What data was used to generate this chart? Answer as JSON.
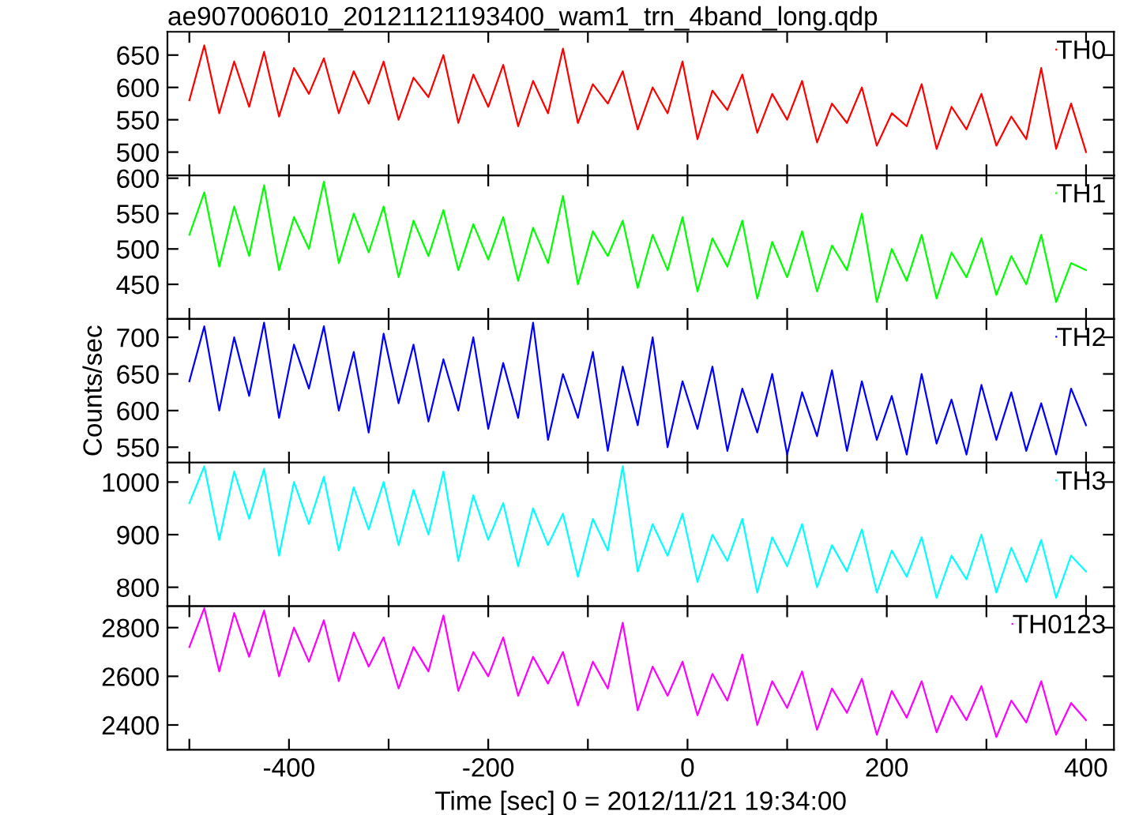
{
  "chart_data": [
    {
      "type": "line",
      "title": "ae907006010_20121121193400_wam1_trn_4band_long.qdp",
      "x": [
        -500,
        -485,
        -470,
        -455,
        -440,
        -425,
        -410,
        -395,
        -380,
        -365,
        -350,
        -335,
        -320,
        -305,
        -290,
        -275,
        -260,
        -245,
        -230,
        -215,
        -200,
        -185,
        -170,
        -155,
        -140,
        -125,
        -110,
        -95,
        -80,
        -65,
        -50,
        -35,
        -20,
        -5,
        10,
        25,
        40,
        55,
        70,
        85,
        100,
        115,
        130,
        145,
        160,
        175,
        190,
        205,
        220,
        235,
        250,
        265,
        280,
        295,
        310,
        325,
        340,
        355,
        370,
        385,
        400
      ],
      "series": [
        {
          "name": "TH0",
          "color": "#ff0000",
          "values": [
            580,
            665,
            560,
            640,
            570,
            655,
            555,
            630,
            590,
            645,
            560,
            625,
            575,
            640,
            550,
            615,
            585,
            650,
            545,
            620,
            570,
            635,
            540,
            610,
            560,
            660,
            545,
            605,
            575,
            625,
            535,
            600,
            560,
            640,
            520,
            595,
            565,
            620,
            530,
            590,
            550,
            610,
            515,
            575,
            545,
            600,
            510,
            560,
            540,
            605,
            505,
            570,
            535,
            590,
            510,
            555,
            520,
            630,
            505,
            575,
            500
          ]
        }
      ],
      "xlim": [
        -522,
        428
      ],
      "xticks": [
        {
          "value": -500,
          "label": null
        },
        -400,
        {
          "value": -300,
          "label": null
        },
        -200,
        {
          "value": -100,
          "label": null
        },
        0,
        {
          "value": 100,
          "label": null
        },
        200,
        {
          "value": 300,
          "label": null
        },
        400
      ],
      "ylim": [
        464,
        686
      ],
      "yticks": [
        500,
        550,
        600,
        650
      ],
      "tick_labels": "y",
      "legend": "top right",
      "grid": false
    },
    {
      "type": "line",
      "x": [
        -500,
        -485,
        -470,
        -455,
        -440,
        -425,
        -410,
        -395,
        -380,
        -365,
        -350,
        -335,
        -320,
        -305,
        -290,
        -275,
        -260,
        -245,
        -230,
        -215,
        -200,
        -185,
        -170,
        -155,
        -140,
        -125,
        -110,
        -95,
        -80,
        -65,
        -50,
        -35,
        -20,
        -5,
        10,
        25,
        40,
        55,
        70,
        85,
        100,
        115,
        130,
        145,
        160,
        175,
        190,
        205,
        220,
        235,
        250,
        265,
        280,
        295,
        310,
        325,
        340,
        355,
        370,
        385,
        400
      ],
      "series": [
        {
          "name": "TH1",
          "color": "#00ff00",
          "values": [
            520,
            580,
            475,
            560,
            490,
            590,
            470,
            545,
            500,
            595,
            480,
            550,
            495,
            560,
            460,
            540,
            490,
            555,
            470,
            535,
            485,
            545,
            455,
            530,
            480,
            575,
            450,
            525,
            490,
            540,
            445,
            520,
            470,
            545,
            440,
            515,
            475,
            540,
            430,
            510,
            460,
            525,
            440,
            505,
            470,
            550,
            425,
            500,
            455,
            520,
            430,
            495,
            460,
            515,
            435,
            490,
            450,
            520,
            425,
            480,
            470
          ]
        }
      ],
      "xlim": [
        -522,
        428
      ],
      "xticks": [
        {
          "value": -500,
          "label": null
        },
        -400,
        {
          "value": -300,
          "label": null
        },
        -200,
        {
          "value": -100,
          "label": null
        },
        0,
        {
          "value": 100,
          "label": null
        },
        200,
        {
          "value": 300,
          "label": null
        },
        400
      ],
      "ylim": [
        401,
        604
      ],
      "yticks": [
        450,
        500,
        550,
        600
      ],
      "tick_labels": "y",
      "legend": "top right",
      "grid": false
    },
    {
      "type": "line",
      "ylabel": "Counts/sec",
      "x": [
        -500,
        -485,
        -470,
        -455,
        -440,
        -425,
        -410,
        -395,
        -380,
        -365,
        -350,
        -335,
        -320,
        -305,
        -290,
        -275,
        -260,
        -245,
        -230,
        -215,
        -200,
        -185,
        -170,
        -155,
        -140,
        -125,
        -110,
        -95,
        -80,
        -65,
        -50,
        -35,
        -20,
        -5,
        10,
        25,
        40,
        55,
        70,
        85,
        100,
        115,
        130,
        145,
        160,
        175,
        190,
        205,
        220,
        235,
        250,
        265,
        280,
        295,
        310,
        325,
        340,
        355,
        370,
        385,
        400
      ],
      "series": [
        {
          "name": "TH2",
          "color": "#0000ff",
          "values": [
            640,
            715,
            600,
            700,
            620,
            720,
            590,
            690,
            630,
            715,
            600,
            680,
            570,
            705,
            610,
            690,
            585,
            670,
            600,
            700,
            575,
            665,
            590,
            720,
            560,
            650,
            590,
            680,
            545,
            660,
            580,
            700,
            550,
            640,
            575,
            660,
            545,
            630,
            570,
            650,
            540,
            625,
            565,
            655,
            545,
            640,
            560,
            620,
            540,
            650,
            555,
            615,
            540,
            635,
            560,
            625,
            545,
            610,
            540,
            630,
            580
          ]
        }
      ],
      "xlim": [
        -522,
        428
      ],
      "xticks": [
        {
          "value": -500,
          "label": null
        },
        -400,
        {
          "value": -300,
          "label": null
        },
        -200,
        {
          "value": -100,
          "label": null
        },
        0,
        {
          "value": 100,
          "label": null
        },
        200,
        {
          "value": 300,
          "label": null
        },
        400
      ],
      "ylim": [
        529,
        725
      ],
      "yticks": [
        550,
        600,
        650,
        700
      ],
      "tick_labels": "y",
      "legend": "top right",
      "grid": false
    },
    {
      "type": "line",
      "x": [
        -500,
        -485,
        -470,
        -455,
        -440,
        -425,
        -410,
        -395,
        -380,
        -365,
        -350,
        -335,
        -320,
        -305,
        -290,
        -275,
        -260,
        -245,
        -230,
        -215,
        -200,
        -185,
        -170,
        -155,
        -140,
        -125,
        -110,
        -95,
        -80,
        -65,
        -50,
        -35,
        -20,
        -5,
        10,
        25,
        40,
        55,
        70,
        85,
        100,
        115,
        130,
        145,
        160,
        175,
        190,
        205,
        220,
        235,
        250,
        265,
        280,
        295,
        310,
        325,
        340,
        355,
        370,
        385,
        400
      ],
      "series": [
        {
          "name": "TH3",
          "color": "#00ffff",
          "values": [
            960,
            1030,
            890,
            1020,
            930,
            1025,
            860,
            1000,
            920,
            1010,
            870,
            990,
            910,
            1000,
            880,
            985,
            900,
            1020,
            850,
            975,
            890,
            960,
            840,
            950,
            880,
            940,
            820,
            930,
            870,
            1030,
            830,
            920,
            860,
            940,
            810,
            900,
            850,
            930,
            790,
            895,
            840,
            920,
            800,
            880,
            830,
            910,
            790,
            870,
            820,
            895,
            780,
            860,
            815,
            900,
            790,
            875,
            810,
            890,
            780,
            860,
            830
          ]
        }
      ],
      "xlim": [
        -522,
        428
      ],
      "xticks": [
        {
          "value": -500,
          "label": null
        },
        -400,
        {
          "value": -300,
          "label": null
        },
        -200,
        {
          "value": -100,
          "label": null
        },
        0,
        {
          "value": 100,
          "label": null
        },
        200,
        {
          "value": 300,
          "label": null
        },
        400
      ],
      "ylim": [
        764,
        1037
      ],
      "yticks": [
        800,
        900,
        1000
      ],
      "tick_labels": "y",
      "legend": "top right",
      "grid": false
    },
    {
      "type": "line",
      "xlabel": "Time [sec] 0 = 2012/11/21 19:34:00",
      "x": [
        -500,
        -485,
        -470,
        -455,
        -440,
        -425,
        -410,
        -395,
        -380,
        -365,
        -350,
        -335,
        -320,
        -305,
        -290,
        -275,
        -260,
        -245,
        -230,
        -215,
        -200,
        -185,
        -170,
        -155,
        -140,
        -125,
        -110,
        -95,
        -80,
        -65,
        -50,
        -35,
        -20,
        -5,
        10,
        25,
        40,
        55,
        70,
        85,
        100,
        115,
        130,
        145,
        160,
        175,
        190,
        205,
        220,
        235,
        250,
        265,
        280,
        295,
        310,
        325,
        340,
        355,
        370,
        385,
        400
      ],
      "series": [
        {
          "name": "TH0123",
          "color": "#ff00ff",
          "values": [
            2720,
            2880,
            2620,
            2860,
            2680,
            2870,
            2600,
            2800,
            2660,
            2830,
            2580,
            2780,
            2640,
            2760,
            2550,
            2720,
            2620,
            2850,
            2540,
            2700,
            2600,
            2760,
            2520,
            2680,
            2570,
            2700,
            2480,
            2660,
            2550,
            2820,
            2460,
            2640,
            2520,
            2660,
            2440,
            2610,
            2500,
            2690,
            2400,
            2580,
            2470,
            2620,
            2380,
            2550,
            2450,
            2590,
            2360,
            2540,
            2430,
            2580,
            2370,
            2520,
            2420,
            2560,
            2350,
            2500,
            2410,
            2580,
            2360,
            2490,
            2420
          ]
        }
      ],
      "xlim": [
        -522,
        428
      ],
      "xticks": [
        {
          "value": -500,
          "label": null
        },
        -400,
        {
          "value": -300,
          "label": null
        },
        -200,
        {
          "value": -100,
          "label": null
        },
        0,
        {
          "value": 100,
          "label": null
        },
        200,
        {
          "value": 300,
          "label": null
        },
        400
      ],
      "ylim": [
        2298,
        2888
      ],
      "yticks": [
        2400,
        2600,
        2800
      ],
      "legend": "top right",
      "grid": false
    }
  ]
}
